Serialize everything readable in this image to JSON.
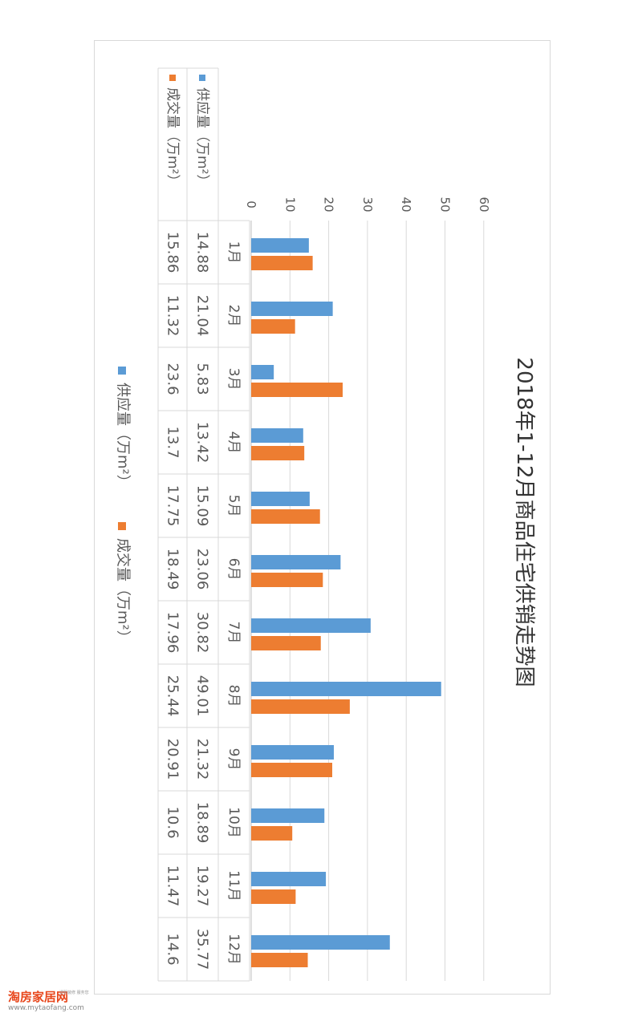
{
  "chart_data": {
    "type": "bar",
    "title": "2018年1-12月商品住宅供销走势图",
    "categories": [
      "1月",
      "2月",
      "3月",
      "4月",
      "5月",
      "6月",
      "7月",
      "8月",
      "9月",
      "10月",
      "11月",
      "12月"
    ],
    "series": [
      {
        "name": "供应量（万m²）",
        "color": "#5b9bd5",
        "values": [
          14.88,
          21.04,
          5.83,
          13.42,
          15.09,
          23.06,
          30.82,
          49.01,
          21.32,
          18.89,
          19.27,
          35.77
        ]
      },
      {
        "name": "成交量（万m²）",
        "color": "#ed7d31",
        "values": [
          15.86,
          11.32,
          23.6,
          13.7,
          17.75,
          18.49,
          17.96,
          25.44,
          20.91,
          10.6,
          11.47,
          14.6
        ]
      }
    ],
    "table_values": [
      [
        "14.88",
        "21.04",
        "5.83",
        "13.42",
        "15.09",
        "23.06",
        "30.82",
        "49.01",
        "21.32",
        "18.89",
        "19.27",
        "35.77"
      ],
      [
        "15.86",
        "11.32",
        "23.6",
        "13.7",
        "17.75",
        "18.49",
        "17.96",
        "25.44",
        "20.91",
        "10.6",
        "11.47",
        "14.6"
      ]
    ],
    "yticks": [
      0,
      10,
      20,
      30,
      40,
      50,
      60
    ],
    "ylim": [
      0,
      60
    ],
    "grid": true,
    "legend": "bottom",
    "orientation": "page-rotated-90"
  },
  "watermark": {
    "name": "淘房家居网",
    "url": "www.mytaofang.com",
    "slogan": "透明装修 服务您"
  }
}
